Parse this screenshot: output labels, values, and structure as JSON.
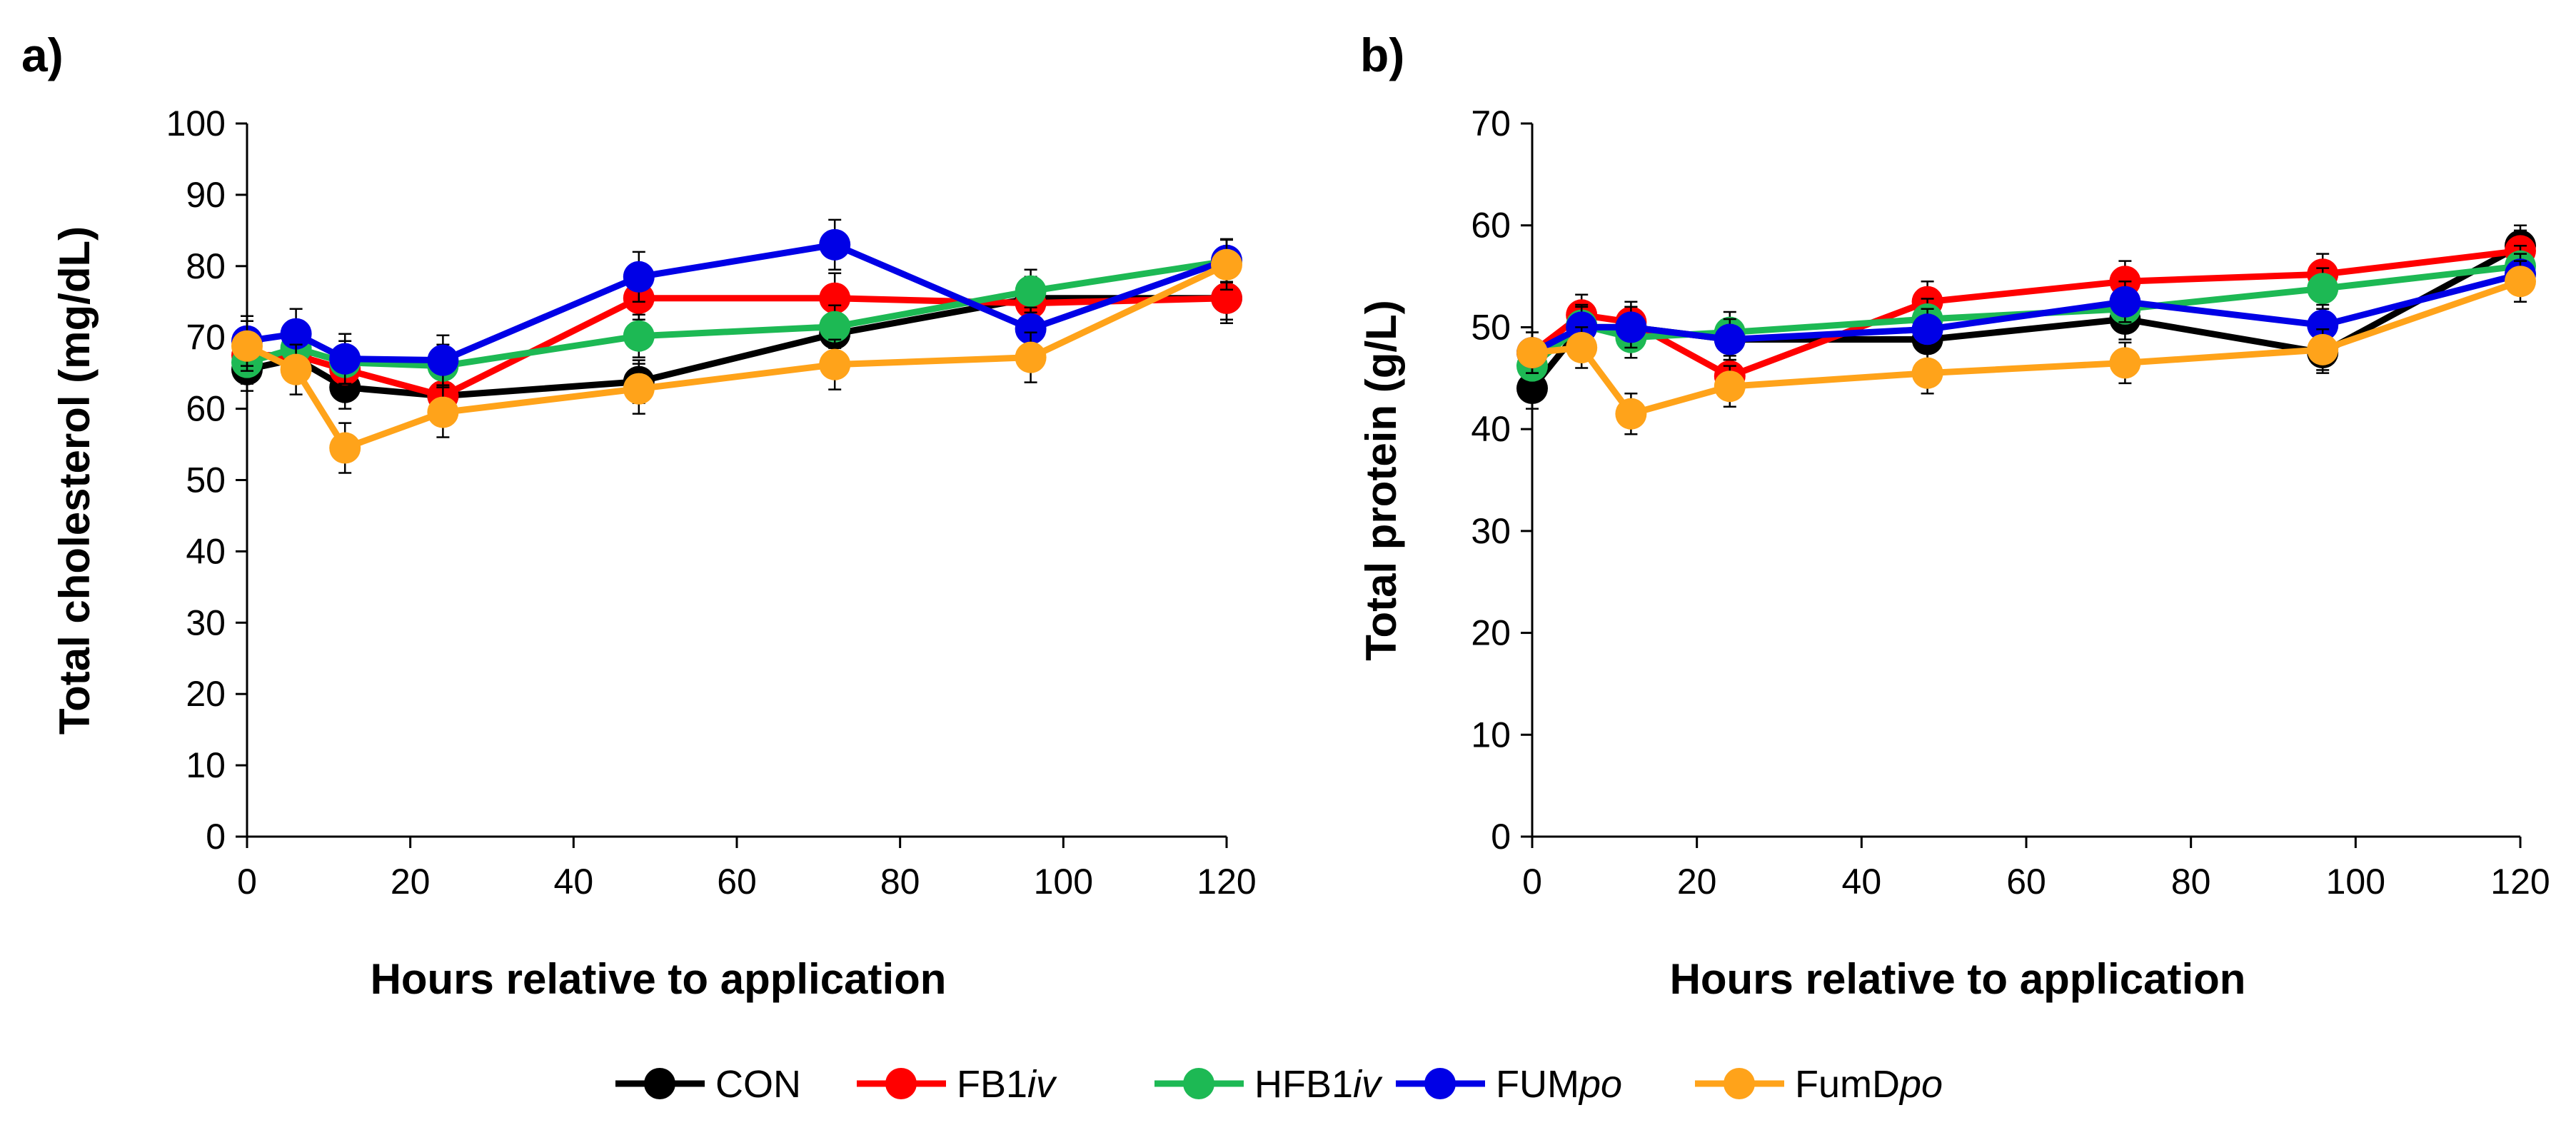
{
  "legend": [
    {
      "base": "CON",
      "suffix": ""
    },
    {
      "base": "FB1",
      "suffix": "iv"
    },
    {
      "base": "HFB1",
      "suffix": "iv"
    },
    {
      "base": "FUM",
      "suffix": "po"
    },
    {
      "base": "FumD",
      "suffix": "po"
    }
  ],
  "colors": {
    "CON": "#000000",
    "FB1iv": "#ff0000",
    "HFB1iv": "#1db954",
    "FUMpo": "#0000e6",
    "FumDpo": "#ffa31a"
  },
  "chart_data": [
    {
      "type": "line",
      "panel_label": "a)",
      "title": "",
      "xlabel": "Hours relative to application",
      "ylabel": "Total cholesterol (mg/dL)",
      "xlim": [
        0,
        120
      ],
      "ylim": [
        0,
        100
      ],
      "xticks": [
        0,
        20,
        40,
        60,
        80,
        100,
        120
      ],
      "yticks": [
        0,
        10,
        20,
        30,
        40,
        50,
        60,
        70,
        80,
        90,
        100
      ],
      "x": [
        0,
        6,
        12,
        24,
        48,
        72,
        96,
        120
      ],
      "series": [
        {
          "name": "CON",
          "values": [
            65.5,
            67,
            63,
            61.8,
            63.8,
            70.5,
            75.5,
            75.5
          ],
          "errors": [
            3,
            3,
            3,
            3,
            3,
            3,
            3,
            3
          ]
        },
        {
          "name": "FB1iv",
          "values": [
            67.5,
            67.5,
            65.5,
            61.8,
            75.5,
            75.5,
            74.8,
            75.5
          ],
          "errors": [
            3,
            3,
            3,
            3,
            3,
            3.5,
            3,
            3.5
          ]
        },
        {
          "name": "HFB1iv",
          "values": [
            66.5,
            68.5,
            66.5,
            66,
            70.2,
            71.5,
            76.5,
            80.7
          ],
          "errors": [
            3,
            3,
            3,
            3,
            3,
            3,
            3,
            3
          ]
        },
        {
          "name": "FUMpo",
          "values": [
            69.5,
            70.5,
            67,
            66.8,
            78.5,
            83,
            71.2,
            80.8
          ],
          "errors": [
            3.5,
            3.5,
            3.5,
            3.5,
            3.5,
            3.5,
            3,
            3
          ]
        },
        {
          "name": "FumDpo",
          "values": [
            68.8,
            65.5,
            54.5,
            59.5,
            62.8,
            66.2,
            67.2,
            80.2
          ],
          "errors": [
            3.5,
            3.5,
            3.5,
            3.5,
            3.5,
            3.5,
            3.5,
            3.5
          ]
        }
      ]
    },
    {
      "type": "line",
      "panel_label": "b)",
      "title": "",
      "xlabel": "Hours relative to application",
      "ylabel": "Total protein (g/L)",
      "xlim": [
        0,
        120
      ],
      "ylim": [
        0,
        70
      ],
      "xticks": [
        0,
        20,
        40,
        60,
        80,
        100,
        120
      ],
      "yticks": [
        0,
        10,
        20,
        30,
        40,
        50,
        60,
        70
      ],
      "x": [
        0,
        6,
        12,
        24,
        48,
        72,
        96,
        120
      ],
      "series": [
        {
          "name": "CON",
          "values": [
            44,
            50,
            50,
            48.8,
            48.8,
            50.8,
            47.5,
            58
          ],
          "errors": [
            2,
            2,
            2,
            2,
            2,
            2,
            2,
            2
          ]
        },
        {
          "name": "FB1iv",
          "values": [
            47.5,
            51.2,
            50.5,
            45.2,
            52.5,
            54.5,
            55.2,
            57.5
          ],
          "errors": [
            2,
            2,
            2,
            2,
            2,
            2,
            2,
            2
          ]
        },
        {
          "name": "HFB1iv",
          "values": [
            46.2,
            50.2,
            49,
            49.5,
            50.8,
            51.8,
            53.8,
            56
          ],
          "errors": [
            2,
            2,
            2,
            2,
            2,
            2,
            2,
            2
          ]
        },
        {
          "name": "FUMpo",
          "values": [
            47.5,
            50,
            50,
            48.8,
            49.8,
            52.5,
            50.2,
            55.2
          ],
          "errors": [
            2,
            2,
            2,
            2,
            2,
            2,
            2,
            2
          ]
        },
        {
          "name": "FumDpo",
          "values": [
            47.5,
            48,
            41.5,
            44.2,
            45.5,
            46.5,
            47.8,
            54.5
          ],
          "errors": [
            2,
            2,
            2,
            2,
            2,
            2,
            2,
            2
          ]
        }
      ]
    }
  ]
}
